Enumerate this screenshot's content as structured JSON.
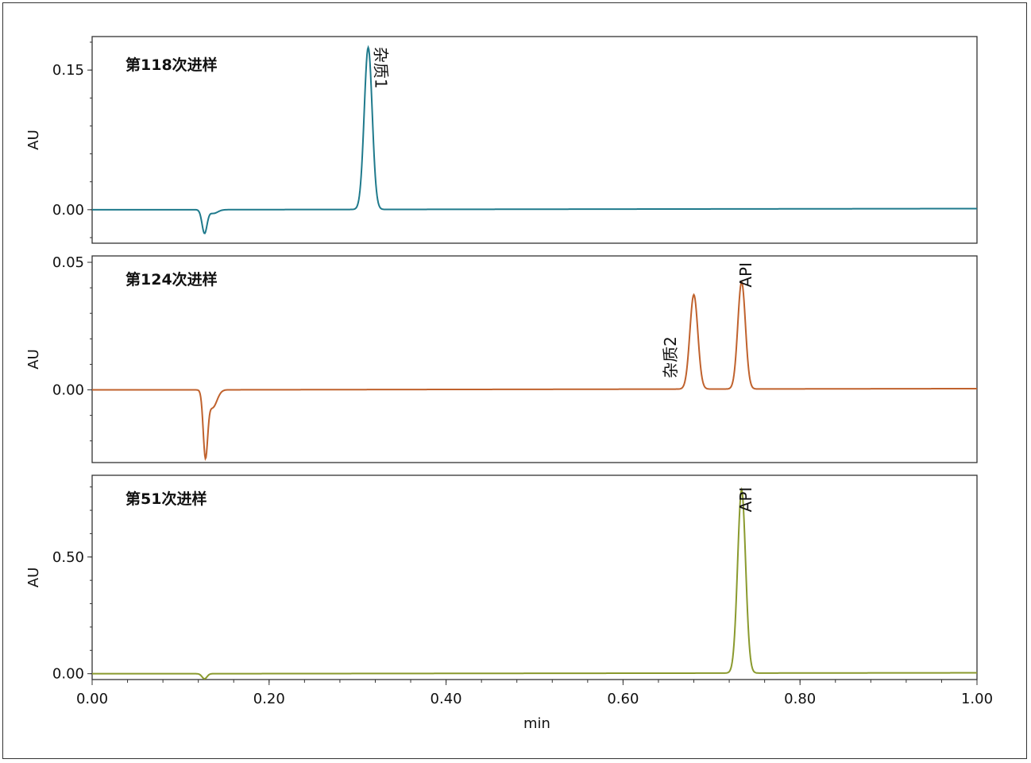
{
  "chart_data": [
    {
      "type": "line",
      "title": "第118次进样",
      "ylabel": "AU",
      "xlabel": "min",
      "xlim": [
        0,
        1.0
      ],
      "ylim": [
        -0.036,
        0.186
      ],
      "yticks": [
        0,
        0.15
      ],
      "ytick_labels": [
        "0.00",
        "0.15"
      ],
      "color": "#1f7a8c",
      "baseline": {
        "y0": 0.0,
        "slope": 0.012
      },
      "features": [
        {
          "t": 0.127,
          "h": -0.025,
          "w": 0.0028
        },
        {
          "t": 0.137,
          "h": -0.004,
          "w": 0.005
        },
        {
          "t": 0.312,
          "h": 0.174,
          "w": 0.0045
        }
      ],
      "annotations": [
        {
          "text": "杂质1",
          "x": 0.32,
          "y": 0.175,
          "rotate": 90
        }
      ]
    },
    {
      "type": "line",
      "title": "第124次进样",
      "ylabel": "AU",
      "xlabel": "min",
      "xlim": [
        0,
        1.0
      ],
      "ylim": [
        -0.0285,
        0.0525
      ],
      "yticks": [
        0,
        0.05
      ],
      "ytick_labels": [
        "0.00",
        "0.05"
      ],
      "color": "#c0622d",
      "baseline": {
        "y0": 0.0,
        "slope": 0.0135
      },
      "features": [
        {
          "t": 0.128,
          "h": -0.025,
          "w": 0.0025
        },
        {
          "t": 0.136,
          "h": -0.007,
          "w": 0.005
        },
        {
          "t": 0.68,
          "h": 0.037,
          "w": 0.0045
        },
        {
          "t": 0.734,
          "h": 0.042,
          "w": 0.0043
        }
      ],
      "annotations": [
        {
          "text": "杂质2",
          "x": 0.66,
          "y": 0.021,
          "rotate": -90
        },
        {
          "text": "API",
          "x": 0.745,
          "y": 0.05,
          "rotate": -90
        }
      ]
    },
    {
      "type": "line",
      "title": "第51次进样",
      "ylabel": "AU",
      "xlabel": "min",
      "xlim": [
        0,
        1.0
      ],
      "ylim": [
        -0.025,
        0.85
      ],
      "yticks": [
        0,
        0.5
      ],
      "ytick_labels": [
        "0.00",
        "0.50"
      ],
      "color": "#8a9a2e",
      "baseline": {
        "y0": 0.0,
        "slope": 0.01
      },
      "features": [
        {
          "t": 0.127,
          "h": -0.022,
          "w": 0.0028
        },
        {
          "t": 0.734,
          "h": 0.785,
          "w": 0.0045
        }
      ],
      "annotations": [
        {
          "text": "API",
          "x": 0.745,
          "y": 0.8,
          "rotate": -90
        }
      ]
    }
  ],
  "x_axis": {
    "label": "min",
    "ticks": [
      0,
      0.2,
      0.4,
      0.6,
      0.8,
      1.0
    ],
    "tick_labels": [
      "0.00",
      "0.20",
      "0.40",
      "0.60",
      "0.80",
      "1.00"
    ]
  }
}
